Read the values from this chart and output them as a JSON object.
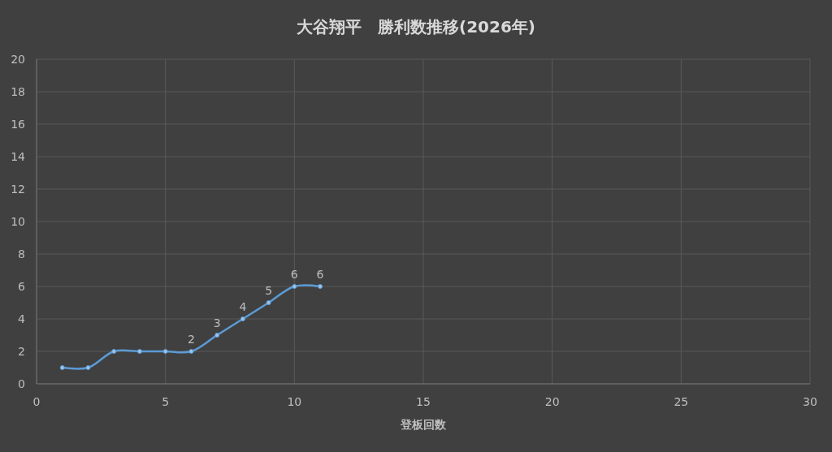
{
  "chart_data": {
    "type": "line",
    "title": "大谷翔平　勝利数推移(2026年)",
    "xlabel": "登板回数",
    "x": [
      1,
      2,
      3,
      4,
      5,
      6,
      7,
      8,
      9,
      10,
      11
    ],
    "series": [
      {
        "color": "#5b9bd5",
        "values": [
          1,
          1,
          2,
          2,
          2,
          2,
          3,
          4,
          5,
          6,
          6
        ],
        "value_labels": [
          null,
          null,
          null,
          null,
          null,
          "2",
          "3",
          "4",
          "5",
          "6",
          "6"
        ]
      }
    ],
    "xlim": [
      0,
      30
    ],
    "xticks": [
      0,
      5,
      10,
      15,
      20,
      25,
      30
    ],
    "ylim": [
      0,
      20
    ],
    "yticks": [
      0,
      2,
      4,
      6,
      8,
      10,
      12,
      14,
      16,
      18,
      20
    ],
    "grid": true,
    "marker": "circle",
    "line_style": "solid"
  }
}
